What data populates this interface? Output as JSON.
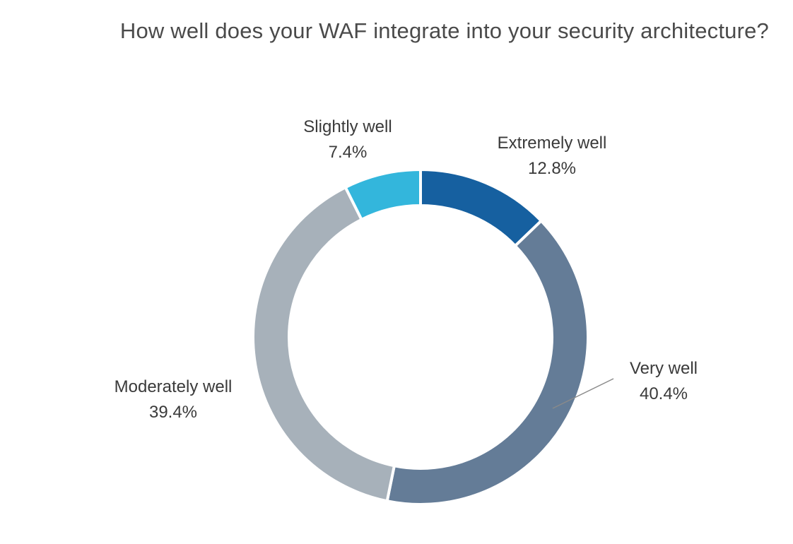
{
  "chart_data": {
    "type": "pie",
    "title": "How well does your WAF integrate into your security architecture?",
    "slices": [
      {
        "label": "Extremely well",
        "value": 12.8,
        "value_label": "12.8%",
        "color": "#1660a0"
      },
      {
        "label": "Very well",
        "value": 40.4,
        "value_label": "40.4%",
        "color": "#647c97"
      },
      {
        "label": "Moderately well",
        "value": 39.4,
        "value_label": "39.4%",
        "color": "#a7b1ba"
      },
      {
        "label": "Slightly well",
        "value": 7.4,
        "value_label": "7.4%",
        "color": "#33b6dc"
      }
    ]
  }
}
